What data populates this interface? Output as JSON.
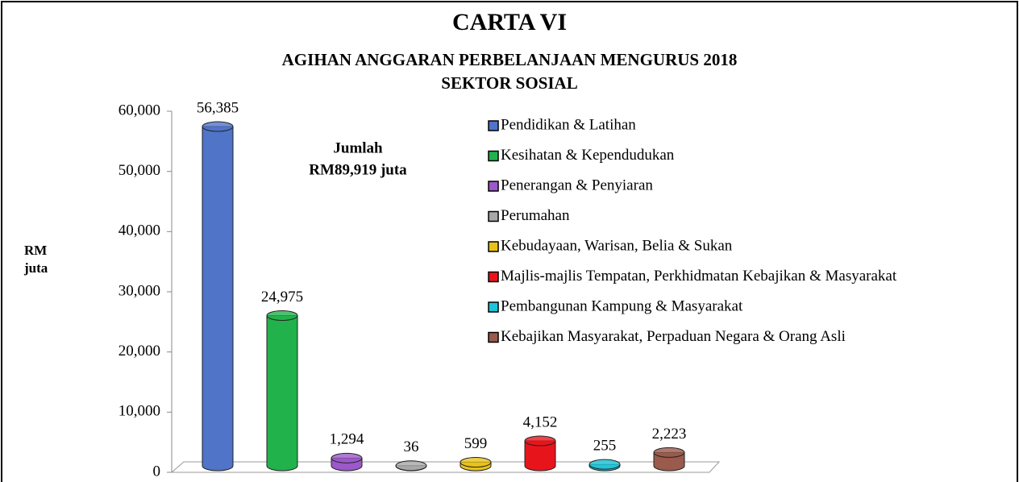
{
  "chart_data": {
    "type": "bar",
    "title": "CARTA VI",
    "subtitle": [
      "AGIHAN ANGGARAN PERBELANJAAN MENGURUS 2018",
      "SEKTOR SOSIAL"
    ],
    "ylabel": "RM juta",
    "annotation": [
      "Jumlah",
      "RM89,919 juta"
    ],
    "categories": [
      "Pendidikan & Latihan",
      "Kesihatan & Kependudukan",
      "Penerangan & Penyiaran",
      "Perumahan",
      "Kebudayaan, Warisan, Belia & Sukan",
      "Majlis-majlis Tempatan, Perkhidmatan Kebajikan & Masyarakat",
      "Pembangunan Kampung & Masyarakat",
      "Kebajikan Masyarakat, Perpaduan Negara & Orang Asli"
    ],
    "values": [
      56385,
      24975,
      1294,
      36,
      599,
      4152,
      255,
      2223
    ],
    "value_labels": [
      "56,385",
      "24,975",
      "1,294",
      "36",
      "599",
      "4,152",
      "255",
      "2,223"
    ],
    "colors": [
      "#4f74c8",
      "#22b24c",
      "#9b59c9",
      "#a8a8a8",
      "#e8c21a",
      "#e8141c",
      "#20c4d8",
      "#9a5a4c"
    ],
    "ylim": [
      0,
      60000
    ],
    "yticks": [
      0,
      {
        "value": 10000,
        "label": "10,000"
      },
      {
        "value": 20000,
        "label": "20,000"
      },
      {
        "value": 30000,
        "label": "30,000"
      },
      {
        "value": 40000,
        "label": "40,000"
      },
      {
        "value": 50000,
        "label": "50,000"
      },
      {
        "value": 60000,
        "label": "60,000"
      }
    ],
    "legend": "top-right"
  }
}
